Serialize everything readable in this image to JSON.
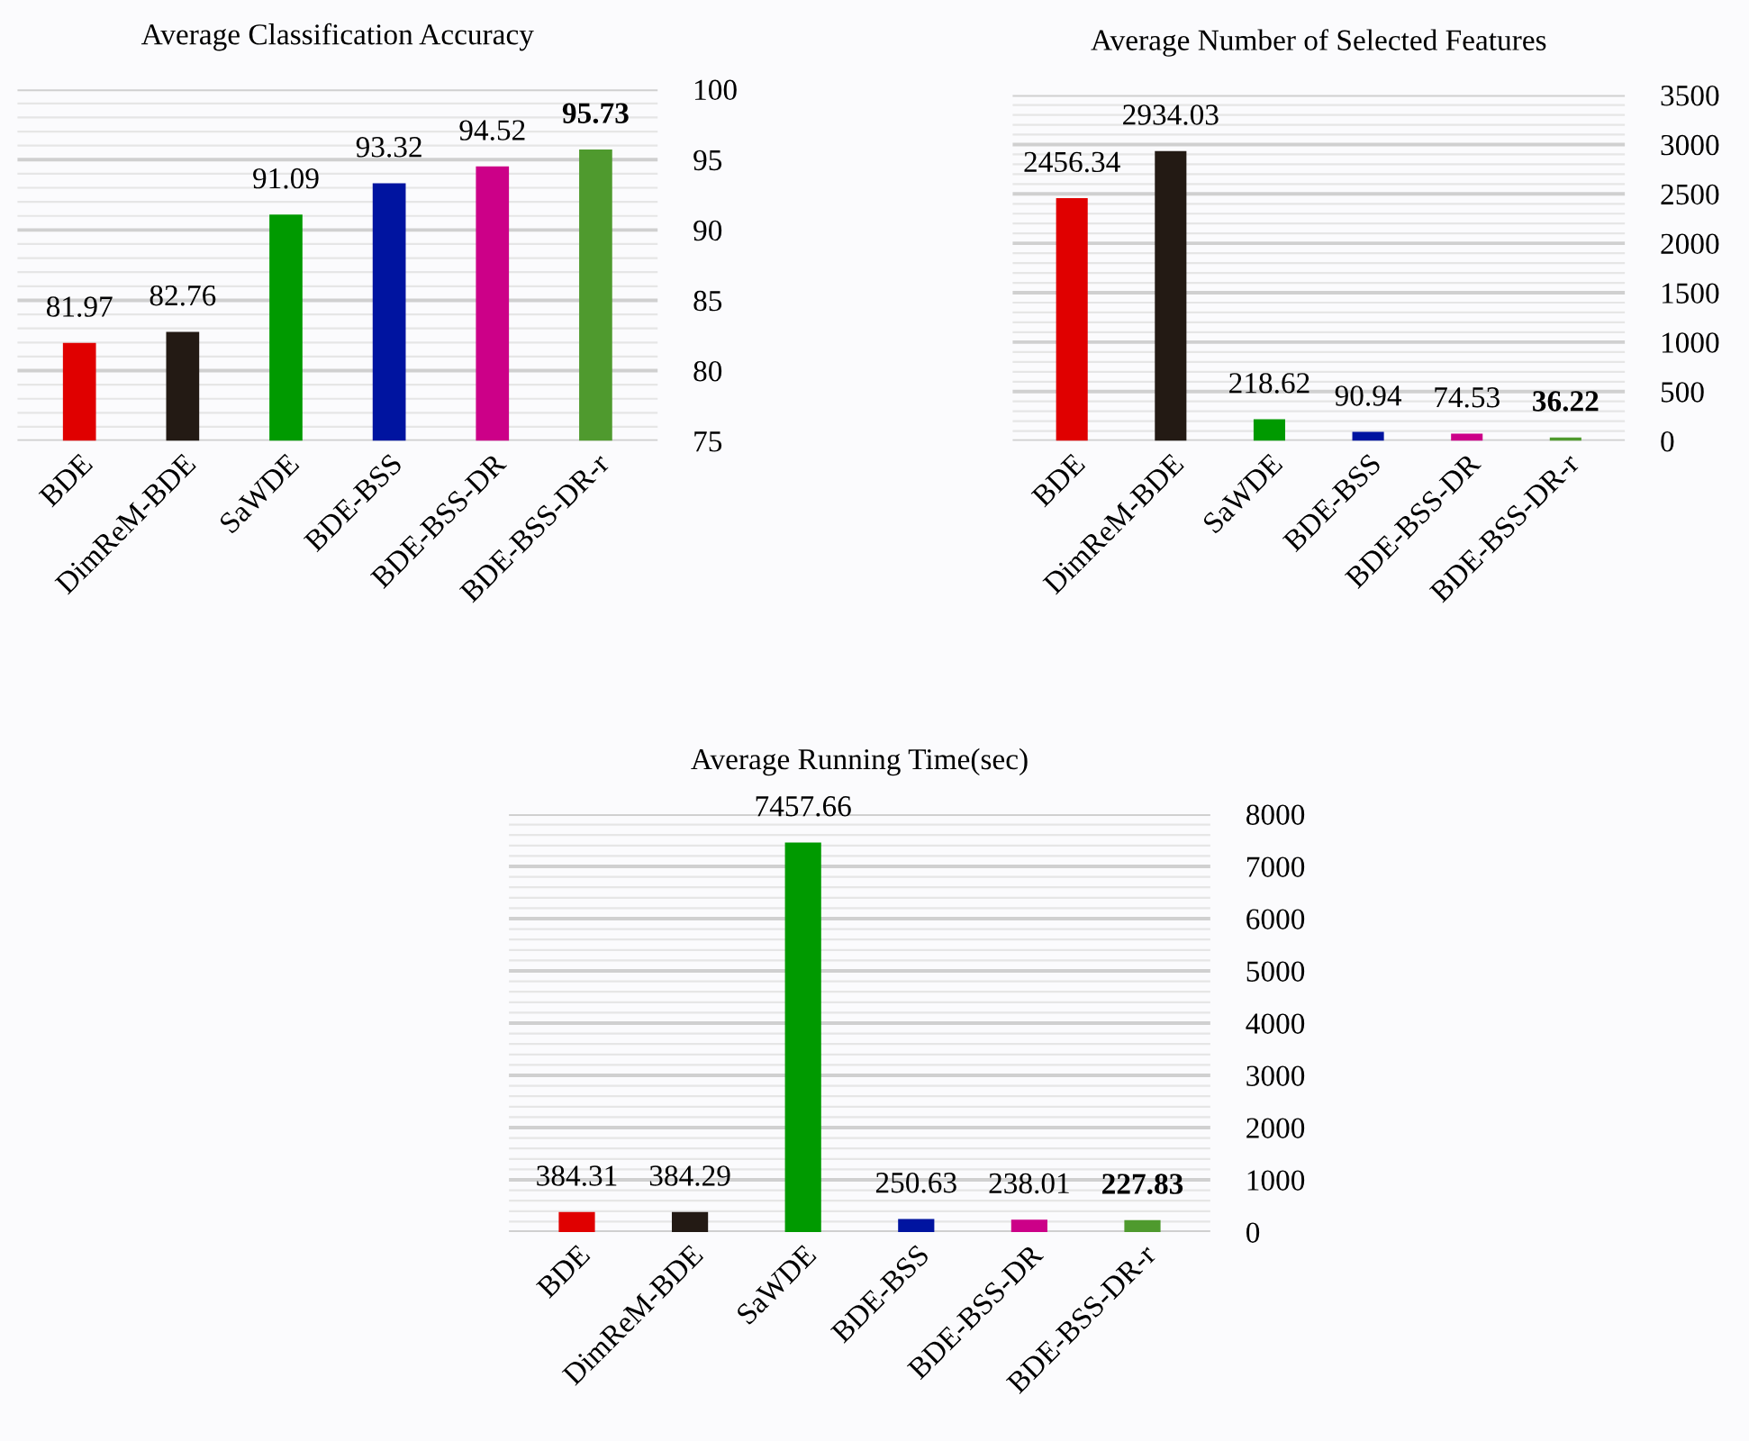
{
  "chart_data": [
    {
      "type": "bar",
      "title": "Average Classification Accuracy",
      "categories": [
        "BDE",
        "DimReM-BDE",
        "SaWDE",
        "BDE-BSS",
        "BDE-BSS-DR",
        "BDE-BSS-DR-r"
      ],
      "values": [
        81.97,
        82.76,
        91.09,
        93.32,
        94.52,
        95.73
      ],
      "colors": [
        "#e00000",
        "#231a14",
        "#009a00",
        "#0014a0",
        "#cc0088",
        "#4f9a2e"
      ],
      "ylim": [
        75,
        100
      ],
      "yticks": [
        75,
        80,
        85,
        90,
        95,
        100
      ],
      "grid": "y",
      "data_labels": true
    },
    {
      "type": "bar",
      "title": "Average Number of Selected Features",
      "categories": [
        "BDE",
        "DimReM-BDE",
        "SaWDE",
        "BDE-BSS",
        "BDE-BSS-DR",
        "BDE-BSS-DR-r"
      ],
      "values": [
        2456.34,
        2934.03,
        218.62,
        90.94,
        74.53,
        36.22
      ],
      "colors": [
        "#e00000",
        "#231a14",
        "#009a00",
        "#0014a0",
        "#cc0088",
        "#4f9a2e"
      ],
      "ylim": [
        0,
        3500
      ],
      "yticks": [
        0,
        500,
        1000,
        1500,
        2000,
        2500,
        3000,
        3500
      ],
      "grid": "y",
      "data_labels": true
    },
    {
      "type": "bar",
      "title": "Average Running Time(sec)",
      "categories": [
        "BDE",
        "DimReM-BDE",
        "SaWDE",
        "BDE-BSS",
        "BDE-BSS-DR",
        "BDE-BSS-DR-r"
      ],
      "values": [
        384.31,
        384.29,
        7457.66,
        250.63,
        238.01,
        227.83
      ],
      "colors": [
        "#e00000",
        "#231a14",
        "#009a00",
        "#0014a0",
        "#cc0088",
        "#4f9a2e"
      ],
      "ylim": [
        0,
        8000
      ],
      "yticks": [
        0,
        1000,
        2000,
        3000,
        4000,
        5000,
        6000,
        7000,
        8000
      ],
      "grid": "y",
      "data_labels": true
    }
  ]
}
